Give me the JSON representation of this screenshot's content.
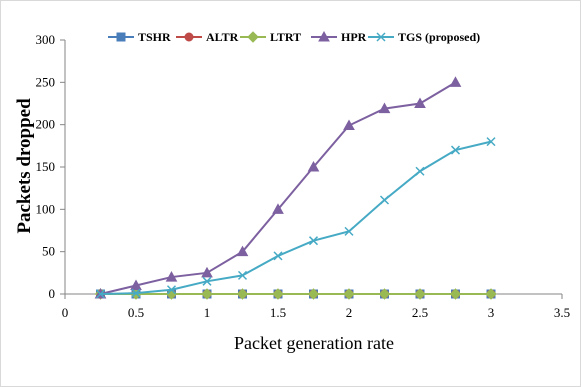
{
  "chart_data": {
    "type": "line",
    "title": "",
    "xlabel": "Packet generation  rate",
    "ylabel": "Packets dropped",
    "xlim": [
      0,
      3.5
    ],
    "ylim": [
      0,
      300
    ],
    "x_ticks": [
      "0",
      "0.5",
      "1",
      "1.5",
      "2",
      "2.5",
      "3",
      "3.5"
    ],
    "y_ticks": [
      "0",
      "50",
      "100",
      "150",
      "200",
      "250",
      "300"
    ],
    "grid": false,
    "legend_position": "top",
    "series": [
      {
        "name": "TSHR",
        "color": "#4a7ebb",
        "marker": "square",
        "x": [
          0.25,
          0.5,
          0.75,
          1,
          1.25,
          1.5,
          1.75,
          2,
          2.25,
          2.5,
          2.75,
          3
        ],
        "y": [
          0,
          0,
          0,
          0,
          0,
          0,
          0,
          0,
          0,
          0,
          0,
          0
        ]
      },
      {
        "name": "ALTR",
        "color": "#be4b48",
        "marker": "circle",
        "x": [
          0.25,
          0.5,
          0.75,
          1,
          1.25,
          1.5,
          1.75,
          2,
          2.25,
          2.5,
          2.75,
          3
        ],
        "y": [
          0,
          0,
          0,
          0,
          0,
          0,
          0,
          0,
          0,
          0,
          0,
          0
        ]
      },
      {
        "name": "LTRT",
        "color": "#98b954",
        "marker": "diamond",
        "x": [
          0.25,
          0.5,
          0.75,
          1,
          1.25,
          1.5,
          1.75,
          2,
          2.25,
          2.5,
          2.75,
          3
        ],
        "y": [
          0,
          0,
          0,
          0,
          0,
          0,
          0,
          0,
          0,
          0,
          0,
          0
        ]
      },
      {
        "name": "HPR",
        "color": "#7d60a0",
        "marker": "triangle",
        "x": [
          0.25,
          0.5,
          0.75,
          1,
          1.25,
          1.5,
          1.75,
          2,
          2.25,
          2.5,
          2.75
        ],
        "y": [
          0,
          10,
          20,
          25,
          50,
          100,
          150,
          199,
          219,
          225,
          250
        ]
      },
      {
        "name": "TGS (proposed)",
        "color": "#46aac5",
        "marker": "x",
        "x": [
          0.25,
          0.5,
          0.75,
          1,
          1.25,
          1.5,
          1.75,
          2,
          2.25,
          2.5,
          2.75,
          3
        ],
        "y": [
          0,
          1,
          5,
          15,
          22,
          45,
          63,
          74,
          111,
          145,
          170,
          180
        ]
      }
    ]
  }
}
